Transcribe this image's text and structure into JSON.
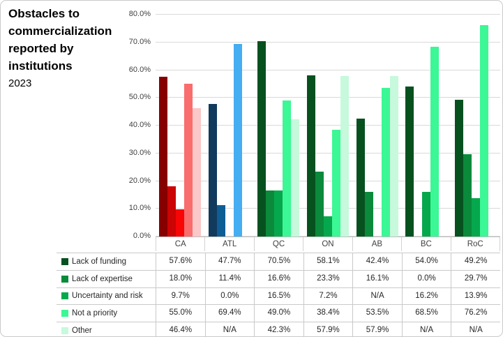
{
  "chart_data": {
    "type": "bar",
    "title": "Obstacles to commercialization reported by institutions",
    "subtitle": "2023",
    "categories": [
      "CA",
      "ATL",
      "QC",
      "ON",
      "AB",
      "BC",
      "RoC"
    ],
    "series": [
      {
        "name": "Lack of funding",
        "values": [
          57.6,
          47.7,
          70.5,
          58.1,
          42.4,
          54.0,
          49.2
        ],
        "display": [
          "57.6%",
          "47.7%",
          "70.5%",
          "58.1%",
          "42.4%",
          "54.0%",
          "49.2%"
        ]
      },
      {
        "name": "Lack of expertise",
        "values": [
          18.0,
          11.4,
          16.6,
          23.3,
          16.1,
          0.0,
          29.7
        ],
        "display": [
          "18.0%",
          "11.4%",
          "16.6%",
          "23.3%",
          "16.1%",
          "0.0%",
          "29.7%"
        ]
      },
      {
        "name": "Uncertainty and risk",
        "values": [
          9.7,
          0.0,
          16.5,
          7.2,
          null,
          16.2,
          13.9
        ],
        "display": [
          "9.7%",
          "0.0%",
          "16.5%",
          "7.2%",
          "N/A",
          "16.2%",
          "13.9%"
        ]
      },
      {
        "name": "Not a priority",
        "values": [
          55.0,
          69.4,
          49.0,
          38.4,
          53.5,
          68.5,
          76.2
        ],
        "display": [
          "55.0%",
          "69.4%",
          "49.0%",
          "38.4%",
          "53.5%",
          "68.5%",
          "76.2%"
        ]
      },
      {
        "name": "Other",
        "values": [
          46.4,
          null,
          42.3,
          57.9,
          57.9,
          null,
          null
        ],
        "display": [
          "46.4%",
          "N/A",
          "42.3%",
          "57.9%",
          "57.9%",
          "N/A",
          "N/A"
        ]
      }
    ],
    "ylim": [
      0,
      80
    ],
    "yticks": [
      "0.0%",
      "10.0%",
      "20.0%",
      "30.0%",
      "40.0%",
      "50.0%",
      "60.0%",
      "70.0%",
      "80.0%"
    ],
    "grid": true,
    "legend_position": "table rows below chart",
    "palettes": {
      "CA": [
        "#870000",
        "#CB0404",
        "#F80505",
        "#F96D6D",
        "#FAC8C8"
      ],
      "ATL": [
        "#123A5C",
        "#0E5E96",
        "#2F7EC0",
        "#45ADF2",
        "#BEE0F7"
      ],
      "default": [
        "#07511F",
        "#0B8A3C",
        "#06A84D",
        "#3CF795",
        "#C7F9DC"
      ]
    }
  }
}
